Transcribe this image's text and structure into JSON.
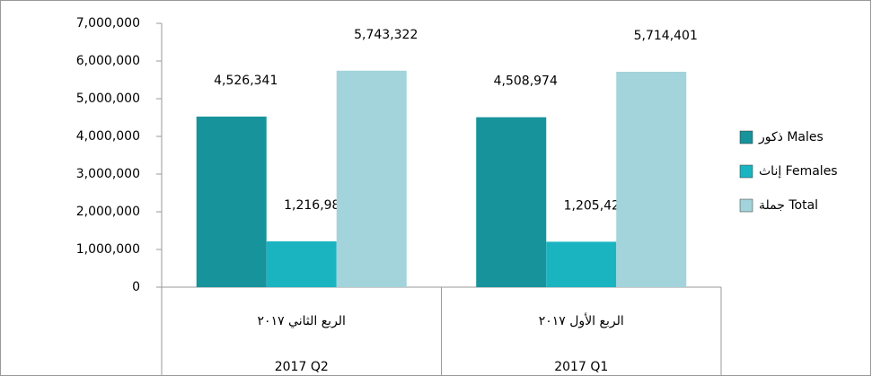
{
  "chart_data": {
    "type": "bar",
    "categories": [
      "الربع الثاني ٢٠١٧",
      "الربع الأول ٢٠١٧"
    ],
    "sub_categories": [
      "2017 Q2",
      "2017 Q1"
    ],
    "series": [
      {
        "name": "ذكور Males",
        "color": "#17939c",
        "values": [
          4526341,
          4508974
        ],
        "value_labels": [
          "4,526,341",
          "4,508,974"
        ]
      },
      {
        "name": "إناث Females",
        "color": "#1ab4c1",
        "values": [
          1216981,
          1205427
        ],
        "value_labels": [
          "1,216,981",
          "1,205,427"
        ]
      },
      {
        "name": "جملة Total",
        "color": "#a3d3db",
        "values": [
          5743322,
          5714401
        ],
        "value_labels": [
          "5,743,322",
          "5,714,401"
        ]
      }
    ],
    "ylim": [
      0,
      7000000
    ],
    "yticks": [
      0,
      {
        "value": 1000000,
        "label": "1,000,000"
      },
      {
        "value": 2000000,
        "label": "2,000,000"
      },
      {
        "value": 3000000,
        "label": "3,000,000"
      },
      {
        "value": 4000000,
        "label": "4,000,000"
      },
      {
        "value": 5000000,
        "label": "5,000,000"
      },
      {
        "value": 6000000,
        "label": "6,000,000"
      },
      {
        "value": 7000000,
        "label": "7,000,000"
      }
    ],
    "legend": "right",
    "grid": false
  }
}
